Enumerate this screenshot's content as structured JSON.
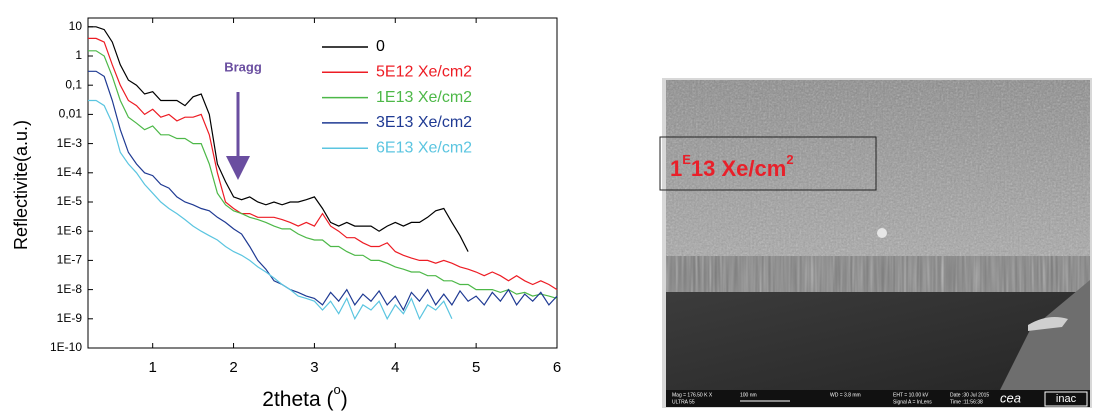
{
  "chart_data": {
    "type": "line",
    "ylabel": "Reflectivite(a.u.)",
    "xlabel_parts": [
      "2theta (",
      "o",
      ")"
    ],
    "annotation": "Bragg",
    "log_y": true,
    "xlim": [
      0.2,
      6
    ],
    "xticks": [
      1,
      2,
      3,
      4,
      5,
      6
    ],
    "ylim": [
      1e-10,
      20
    ],
    "yticks": [
      10,
      1,
      {
        "value": 0.1,
        "label": "0,1"
      },
      {
        "value": 0.01,
        "label": "0,01"
      },
      {
        "value": 0.001,
        "label": "1E-3"
      },
      {
        "value": 0.0001,
        "label": "1E-4"
      },
      {
        "value": 1e-05,
        "label": "1E-5"
      },
      {
        "value": 1e-06,
        "label": "1E-6"
      },
      {
        "value": 1e-07,
        "label": "1E-7"
      },
      {
        "value": 1e-08,
        "label": "1E-8"
      },
      {
        "value": 1e-09,
        "label": "1E-9"
      },
      {
        "value": 1e-10,
        "label": "1E-10"
      }
    ],
    "legend": "upper right",
    "x": [
      0.2,
      0.3,
      0.4,
      0.5,
      0.6,
      0.7,
      0.8,
      0.9,
      1.0,
      1.1,
      1.2,
      1.3,
      1.4,
      1.5,
      1.6,
      1.7,
      1.8,
      1.9,
      2.0,
      2.1,
      2.2,
      2.3,
      2.4,
      2.5,
      2.6,
      2.7,
      2.8,
      2.9,
      3.0,
      3.1,
      3.2,
      3.3,
      3.4,
      3.5,
      3.6,
      3.7,
      3.8,
      3.9,
      4.0,
      4.1,
      4.2,
      4.3,
      4.4,
      4.5,
      4.6,
      4.7,
      4.8,
      4.9,
      5.0,
      5.1,
      5.2,
      5.3,
      5.4,
      5.5,
      5.6,
      5.7,
      5.8,
      5.9,
      6.0
    ],
    "series": [
      {
        "name": "0",
        "color": "#000000",
        "values": [
          10,
          10,
          8,
          3,
          0.5,
          0.15,
          0.1,
          0.05,
          0.06,
          0.03,
          0.03,
          0.03,
          0.02,
          0.04,
          0.05,
          0.01,
          0.0002,
          5e-05,
          1.5e-05,
          1.2e-05,
          1.5e-05,
          1e-05,
          8e-06,
          1e-05,
          8e-06,
          1e-05,
          1e-05,
          1.2e-05,
          1.5e-05,
          6e-06,
          2e-06,
          1.5e-06,
          2e-06,
          1.5e-06,
          1.5e-06,
          1.5e-06,
          1e-06,
          1.5e-06,
          2e-06,
          1.5e-06,
          2e-06,
          2e-06,
          3e-06,
          5e-06,
          6e-06,
          2e-06,
          7e-07,
          2e-07,
          null,
          null,
          null,
          null,
          null,
          null,
          null,
          null,
          null,
          null,
          null
        ]
      },
      {
        "name": "5E12 Xe/cm2",
        "color": "#ed1c24",
        "values": [
          4,
          4,
          3,
          0.5,
          0.1,
          0.03,
          0.02,
          0.01,
          0.015,
          0.008,
          0.01,
          0.006,
          0.008,
          0.008,
          0.01,
          0.002,
          0.0001,
          1e-05,
          6e-06,
          4e-06,
          4e-06,
          3e-06,
          3e-06,
          3e-06,
          2.5e-06,
          2e-06,
          1.5e-06,
          2e-06,
          1.5e-06,
          4e-06,
          1.5e-06,
          1e-06,
          6e-07,
          6e-07,
          4e-07,
          3e-07,
          3e-07,
          4e-07,
          2e-07,
          1.5e-07,
          1.2e-07,
          1e-07,
          1e-07,
          8e-08,
          1e-07,
          8e-08,
          6e-08,
          5e-08,
          4e-08,
          3e-08,
          4e-08,
          3e-08,
          2e-08,
          3e-08,
          2e-08,
          1.5e-08,
          2e-08,
          1.5e-08,
          1e-08
        ]
      },
      {
        "name": "1E13 Xe/cm2",
        "color": "#4db848",
        "values": [
          1.5,
          1.5,
          1,
          0.2,
          0.03,
          0.008,
          0.005,
          0.003,
          0.004,
          0.002,
          0.002,
          0.0015,
          0.0015,
          0.001,
          0.001,
          0.0002,
          2e-05,
          8e-06,
          5e-06,
          4e-06,
          3e-06,
          2.5e-06,
          2e-06,
          1.5e-06,
          1.2e-06,
          1.2e-06,
          8e-07,
          6e-07,
          5e-07,
          5e-07,
          3e-07,
          3e-07,
          2e-07,
          1.5e-07,
          1.5e-07,
          1e-07,
          1e-07,
          8e-08,
          6e-08,
          5e-08,
          4e-08,
          4e-08,
          3e-08,
          3e-08,
          2e-08,
          2e-08,
          1.5e-08,
          1.5e-08,
          1e-08,
          1e-08,
          1e-08,
          8e-09,
          1e-08,
          7e-09,
          8e-09,
          6e-09,
          7e-09,
          6e-09,
          5e-09
        ]
      },
      {
        "name": "3E13 Xe/cm2",
        "color": "#1f3a93",
        "values": [
          0.3,
          0.3,
          0.2,
          0.03,
          0.003,
          0.0005,
          0.0002,
          0.0001,
          8e-05,
          4e-05,
          3e-05,
          1.5e-05,
          1e-05,
          8e-06,
          6e-06,
          5e-06,
          3e-06,
          2e-06,
          1.2e-06,
          8e-07,
          3e-07,
          1e-07,
          5e-08,
          2e-08,
          1.5e-08,
          1e-08,
          8e-09,
          6e-09,
          5e-09,
          3e-09,
          8e-09,
          4e-09,
          1e-08,
          3e-09,
          7e-09,
          4e-09,
          9e-09,
          3e-09,
          6e-09,
          2e-09,
          8e-09,
          4e-09,
          1e-08,
          3e-09,
          7e-09,
          3e-09,
          9e-09,
          4e-09,
          6e-09,
          3e-09,
          8e-09,
          4e-09,
          1e-08,
          3e-09,
          7e-09,
          4e-09,
          8e-09,
          3e-09,
          6e-09
        ]
      },
      {
        "name": "6E13 Xe/cm2",
        "color": "#5bc5e0",
        "values": [
          0.03,
          0.03,
          0.02,
          0.005,
          0.0005,
          0.0002,
          0.0001,
          4e-05,
          2e-05,
          1e-05,
          6e-06,
          4e-06,
          2.5e-06,
          1.5e-06,
          1e-06,
          7e-07,
          5e-07,
          3e-07,
          2e-07,
          1.5e-07,
          1e-07,
          6e-08,
          4e-08,
          2.5e-08,
          1.5e-08,
          1e-08,
          6e-09,
          5e-09,
          4e-09,
          2e-09,
          4e-09,
          1.5e-09,
          5e-09,
          1e-09,
          3e-09,
          2e-09,
          4e-09,
          1e-09,
          3e-09,
          1.5e-09,
          5e-09,
          1e-09,
          3e-09,
          2e-09,
          4e-09,
          1e-09,
          null,
          null,
          null,
          null,
          null,
          null,
          null,
          null,
          null,
          null,
          null,
          null,
          null
        ]
      }
    ]
  },
  "image": {
    "label_parts": [
      "1",
      "E",
      "13 Xe/cm",
      "2"
    ],
    "info": [
      "Mag = 176.50 K X",
      "ULTRA 55",
      "100 nm",
      "WD = 3.8 mm",
      "EHT = 10.00 kV",
      "Signal A = InLens",
      "Date :30 Jul 2015",
      "Time :11:56:38",
      "cea",
      "inac"
    ]
  }
}
